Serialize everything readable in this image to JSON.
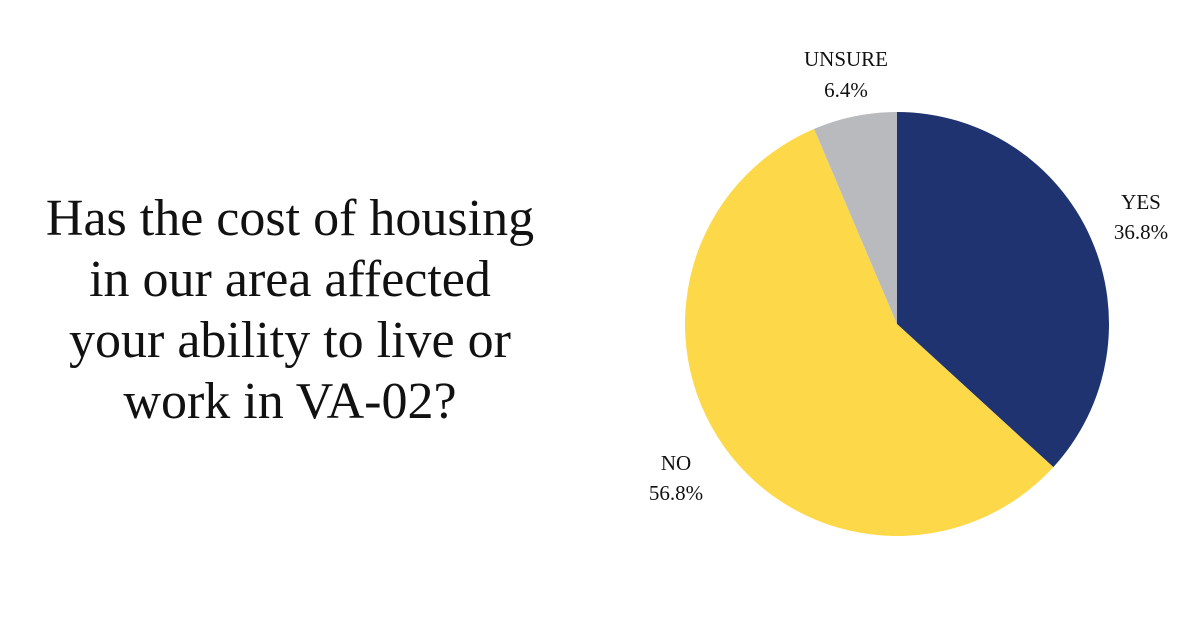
{
  "question": {
    "lines": [
      "Has the cost of housing",
      "in our area affected",
      "your ability to live or",
      "work in VA-02?"
    ]
  },
  "chart_data": {
    "type": "pie",
    "title": "Has the cost of housing in our area affected your ability to live or work in VA-02?",
    "slices": [
      {
        "label": "YES",
        "value": 36.8,
        "display": "36.8%",
        "color": "#1f3370"
      },
      {
        "label": "NO",
        "value": 56.8,
        "display": "56.8%",
        "color": "#fdd94a"
      },
      {
        "label": "UNSURE",
        "value": 6.4,
        "display": "6.4%",
        "color": "#b9babd"
      }
    ],
    "start": "12 o'clock",
    "direction": "clockwise",
    "legend": "none",
    "data_labels": "outside"
  }
}
